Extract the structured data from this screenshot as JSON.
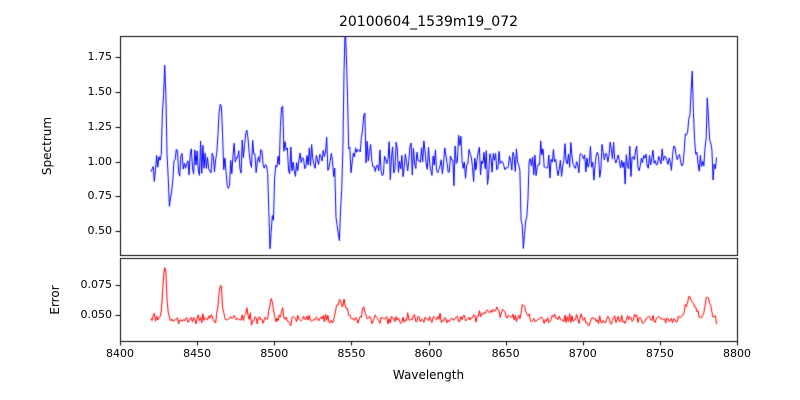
{
  "figure": {
    "title": "20100604_1539m19_072",
    "background": "#ffffff",
    "frame_color": "#000000"
  },
  "x_axis": {
    "label": "Wavelength",
    "lim": [
      8400,
      8800
    ],
    "ticks": [
      {
        "value": 8400,
        "label": "8400"
      },
      {
        "value": 8450,
        "label": "8450"
      },
      {
        "value": 8500,
        "label": "8500"
      },
      {
        "value": 8550,
        "label": "8550"
      },
      {
        "value": 8600,
        "label": "8600"
      },
      {
        "value": 8650,
        "label": "8650"
      },
      {
        "value": 8700,
        "label": "8700"
      },
      {
        "value": 8750,
        "label": "8750"
      },
      {
        "value": 8800,
        "label": "8800"
      }
    ]
  },
  "chart_data": [
    {
      "type": "line",
      "name": "spectrum",
      "ylabel": "Spectrum",
      "color": "#0000ff",
      "ylim": [
        0.33,
        1.9
      ],
      "yticks": [
        {
          "value": 0.5,
          "label": "0.50"
        },
        {
          "value": 0.75,
          "label": "0.75"
        },
        {
          "value": 1.0,
          "label": "1.00"
        },
        {
          "value": 1.25,
          "label": "1.25"
        },
        {
          "value": 1.5,
          "label": "1.50"
        },
        {
          "value": 1.75,
          "label": "1.75"
        }
      ],
      "x_start": 8420,
      "x_end": 8787,
      "x_step": 0.75,
      "baseline": 1.0,
      "noise_sigma": 0.065,
      "seed": 11,
      "features": [
        {
          "x": 8429,
          "amp": 0.66,
          "width": 1.2
        },
        {
          "x": 8432,
          "amp": -0.4,
          "width": 1.2
        },
        {
          "x": 8465,
          "amp": 0.47,
          "width": 1.2
        },
        {
          "x": 8470,
          "amp": -0.25,
          "width": 1.0
        },
        {
          "x": 8482,
          "amp": 0.28,
          "width": 1.0
        },
        {
          "x": 8498,
          "amp": -0.52,
          "width": 1.3
        },
        {
          "x": 8505,
          "amp": 0.3,
          "width": 1.0
        },
        {
          "x": 8542,
          "amp": -0.57,
          "width": 1.6
        },
        {
          "x": 8546,
          "amp": 0.85,
          "width": 1.2
        },
        {
          "x": 8558,
          "amp": 0.25,
          "width": 1.0
        },
        {
          "x": 8662,
          "amp": -0.6,
          "width": 1.6
        },
        {
          "x": 8768,
          "amp": 0.28,
          "width": 1.6
        },
        {
          "x": 8771,
          "amp": 0.48,
          "width": 1.1
        },
        {
          "x": 8781,
          "amp": 0.4,
          "width": 1.1
        }
      ]
    },
    {
      "type": "line",
      "name": "error",
      "ylabel": "Error",
      "color": "#ff0000",
      "ylim": [
        0.028,
        0.0975
      ],
      "yticks": [
        {
          "value": 0.05,
          "label": "0.050"
        },
        {
          "value": 0.075,
          "label": "0.075"
        }
      ],
      "x_start": 8420,
      "x_end": 8787,
      "x_step": 0.75,
      "baseline": 0.046,
      "noise_sigma": 0.0022,
      "seed": 99,
      "features": [
        {
          "x": 8429,
          "amp": 0.044,
          "width": 1.2
        },
        {
          "x": 8465,
          "amp": 0.028,
          "width": 1.2
        },
        {
          "x": 8482,
          "amp": 0.008,
          "width": 1.0
        },
        {
          "x": 8498,
          "amp": 0.018,
          "width": 1.2
        },
        {
          "x": 8505,
          "amp": 0.01,
          "width": 1.0
        },
        {
          "x": 8542,
          "amp": 0.016,
          "width": 1.6
        },
        {
          "x": 8546,
          "amp": 0.014,
          "width": 1.2
        },
        {
          "x": 8558,
          "amp": 0.008,
          "width": 1.0
        },
        {
          "x": 8640,
          "amp": 0.007,
          "width": 8.0
        },
        {
          "x": 8662,
          "amp": 0.012,
          "width": 1.6
        },
        {
          "x": 8770,
          "amp": 0.018,
          "width": 3.0
        },
        {
          "x": 8781,
          "amp": 0.016,
          "width": 2.0
        }
      ]
    }
  ]
}
